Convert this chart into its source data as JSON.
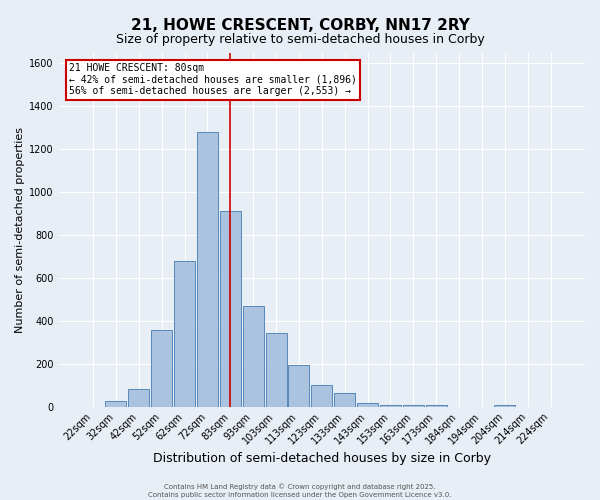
{
  "title": "21, HOWE CRESCENT, CORBY, NN17 2RY",
  "subtitle": "Size of property relative to semi-detached houses in Corby",
  "xlabel": "Distribution of semi-detached houses by size in Corby",
  "ylabel": "Number of semi-detached properties",
  "categories": [
    "22sqm",
    "32sqm",
    "42sqm",
    "52sqm",
    "62sqm",
    "72sqm",
    "83sqm",
    "93sqm",
    "103sqm",
    "113sqm",
    "123sqm",
    "133sqm",
    "143sqm",
    "153sqm",
    "163sqm",
    "173sqm",
    "184sqm",
    "194sqm",
    "204sqm",
    "214sqm",
    "224sqm"
  ],
  "values": [
    0,
    25,
    80,
    355,
    680,
    1280,
    910,
    470,
    345,
    195,
    100,
    65,
    18,
    10,
    10,
    10,
    0,
    0,
    8,
    0,
    0
  ],
  "bar_color": "#aac4e0",
  "bar_edge_color": "#5588bb",
  "bg_color": "#e8eef5",
  "grid_color": "#ffffff",
  "vline_x_index": 6,
  "vline_color": "#cc0000",
  "annotation_title": "21 HOWE CRESCENT: 80sqm",
  "annotation_line2": "← 42% of semi-detached houses are smaller (1,896)",
  "annotation_line3": "56% of semi-detached houses are larger (2,553) →",
  "annotation_box_color": "#ffffff",
  "annotation_border_color": "#cc0000",
  "footer_line1": "Contains HM Land Registry data © Crown copyright and database right 2025.",
  "footer_line2": "Contains public sector information licensed under the Open Government Licence v3.0.",
  "ylim": [
    0,
    1650
  ],
  "yticks": [
    0,
    200,
    400,
    600,
    800,
    1000,
    1200,
    1400,
    1600
  ],
  "title_fontsize": 11,
  "subtitle_fontsize": 9,
  "ylabel_fontsize": 8,
  "xlabel_fontsize": 9,
  "tick_fontsize": 7,
  "annotation_fontsize": 7,
  "footer_fontsize": 5
}
